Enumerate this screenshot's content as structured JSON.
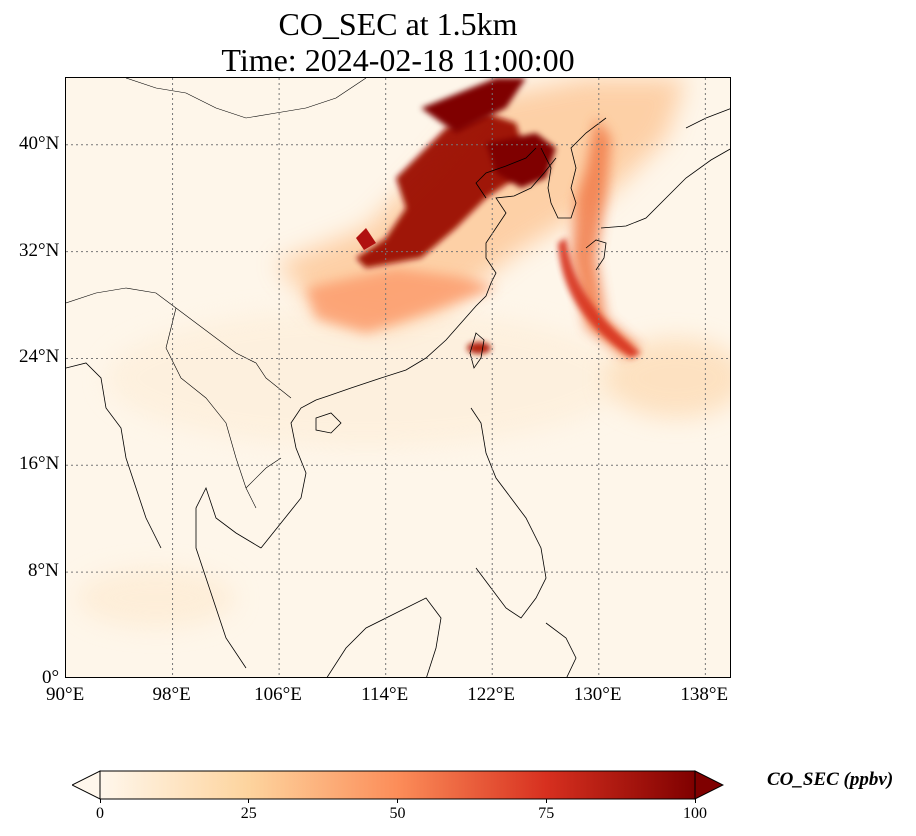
{
  "title": {
    "line1": "CO_SEC at 1.5km",
    "line2": "Time: 2024-02-18 11:00:00"
  },
  "map": {
    "variable": "CO_SEC",
    "level": "1.5km",
    "time": "2024-02-18 11:00:00",
    "lon_range": [
      90,
      140
    ],
    "lat_range": [
      0,
      45
    ],
    "projection": "PlateCarree",
    "gridlines": "dotted",
    "coastlines": true,
    "borders": true,
    "lon_ticks": [
      {
        "value": 90,
        "label": "90°E"
      },
      {
        "value": 98,
        "label": "98°E"
      },
      {
        "value": 106,
        "label": "106°E"
      },
      {
        "value": 114,
        "label": "114°E"
      },
      {
        "value": 122,
        "label": "122°E"
      },
      {
        "value": 130,
        "label": "130°E"
      },
      {
        "value": 138,
        "label": "138°E"
      }
    ],
    "lat_ticks": [
      {
        "value": 0,
        "label": "0°"
      },
      {
        "value": 8,
        "label": "8°N"
      },
      {
        "value": 16,
        "label": "16°N"
      },
      {
        "value": 24,
        "label": "24°N"
      },
      {
        "value": 32,
        "label": "32°N"
      },
      {
        "value": 40,
        "label": "40°N"
      }
    ]
  },
  "colorbar": {
    "label": "CO_SEC (ppbv)",
    "colormap": "OrRd",
    "range": [
      0,
      100
    ],
    "extend": "both",
    "ticks": [
      {
        "value": 0,
        "label": "0"
      },
      {
        "value": 25,
        "label": "25"
      },
      {
        "value": 50,
        "label": "50"
      },
      {
        "value": 75,
        "label": "75"
      },
      {
        "value": 100,
        "label": "100"
      }
    ],
    "colors": [
      "#fff7ec",
      "#fdd49e",
      "#fc8d59",
      "#d7301f",
      "#7f0000"
    ]
  }
}
